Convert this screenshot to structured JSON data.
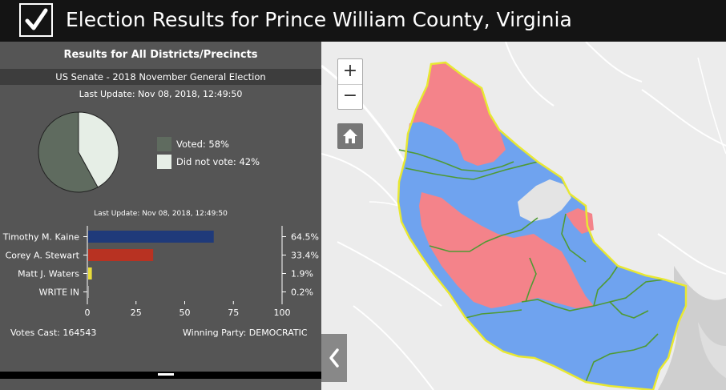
{
  "header": {
    "title": "Election Results for Prince William County, Virginia",
    "logo_icon": "checkbox-check-icon"
  },
  "panel": {
    "title": "Results for All Districts/Precincts",
    "subtitle": "US Senate - 2018 November General Election",
    "last_update": "Last Update: Nov 08, 2018, 12:49:50",
    "turnout": {
      "voted_label": "Voted: 58%",
      "not_voted_label": "Did not vote: 42%",
      "voted_pct": 58,
      "not_voted_pct": 42,
      "voted_color": "#5f6b5f",
      "not_voted_color": "#e6eee6"
    },
    "bar_last_update": "Last Update: Nov 08, 2018, 12:49:50",
    "votes_cast": "Votes Cast: 164543",
    "winning_party": "Winning Party: DEMOCRATIC"
  },
  "chart_data": {
    "type": "bar",
    "orientation": "horizontal",
    "categories": [
      "Timothy M. Kaine",
      "Corey A. Stewart",
      "Matt J. Waters",
      "WRITE IN"
    ],
    "values": [
      64.5,
      33.4,
      1.9,
      0.2
    ],
    "value_labels": [
      "64.5%",
      "33.4%",
      "1.9%",
      "0.2%"
    ],
    "colors": [
      "#1f3a7a",
      "#b83222",
      "#e8dc3a",
      "#cccccc"
    ],
    "xlim": [
      0,
      100
    ],
    "xticks": [
      0,
      25,
      50,
      75,
      100
    ]
  },
  "map": {
    "zoom_in_label": "+",
    "zoom_out_label": "−",
    "home_icon": "home-icon",
    "collapse_icon": "chevron-left-icon",
    "colors": {
      "democratic": "#6fa3ef",
      "republican": "#f4838a",
      "boundary": "#e8e832",
      "district_line": "#55aa33"
    }
  }
}
